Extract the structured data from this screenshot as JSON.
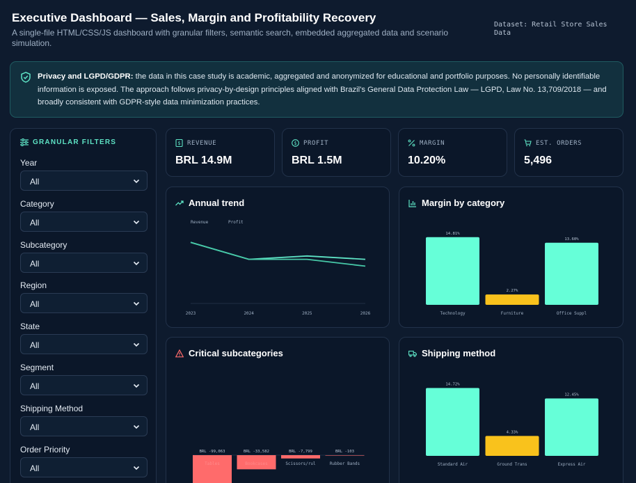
{
  "header": {
    "title": "Executive Dashboard — Sales, Margin and Profitability Recovery",
    "subtitle": "A single-file HTML/CSS/JS dashboard with granular filters, semantic search, embedded aggregated data and scenario simulation.",
    "dataset": "Dataset: Retail Store Sales Data"
  },
  "privacy": {
    "bold": "Privacy and LGPD/GDPR:",
    "text": " the data in this case study is academic, aggregated and anonymized for educational and portfolio purposes. No personally identifiable information is exposed. The approach follows privacy-by-design principles aligned with Brazil's General Data Protection Law — LGPD, Law No. 13,709/2018 — and broadly consistent with GDPR-style data minimization practices."
  },
  "filters": {
    "heading": "GRANULAR FILTERS",
    "items": [
      {
        "label": "Year",
        "value": "All"
      },
      {
        "label": "Category",
        "value": "All"
      },
      {
        "label": "Subcategory",
        "value": "All"
      },
      {
        "label": "Region",
        "value": "All"
      },
      {
        "label": "State",
        "value": "All"
      },
      {
        "label": "Segment",
        "value": "All"
      },
      {
        "label": "Shipping Method",
        "value": "All"
      },
      {
        "label": "Order Priority",
        "value": "All"
      }
    ]
  },
  "kpis": [
    {
      "label": "REVENUE",
      "value": "BRL 14.9M",
      "icon": "revenue-icon"
    },
    {
      "label": "PROFIT",
      "value": "BRL 1.5M",
      "icon": "dollar-circle-icon"
    },
    {
      "label": "MARGIN",
      "value": "10.20%",
      "icon": "percent-icon"
    },
    {
      "label": "EST. ORDERS",
      "value": "5,496",
      "icon": "cart-icon"
    }
  ],
  "panels": {
    "annual_trend": "Annual trend",
    "margin_by_category": "Margin by category",
    "critical_subcategories": "Critical subcategories",
    "shipping_method": "Shipping method"
  },
  "colors": {
    "accent": "#5ee3c5",
    "bar": "#66ffd8",
    "warn": "#f9c21c",
    "danger": "#ff6b6b"
  },
  "chart_data": [
    {
      "type": "line",
      "title": "Annual trend",
      "x": [
        "2023",
        "2024",
        "2025",
        "2026"
      ],
      "series": [
        {
          "name": "Revenue",
          "values": [
            3.9,
            3.65,
            3.7,
            3.65
          ]
        },
        {
          "name": "Profit",
          "values": [
            3.9,
            3.65,
            3.65,
            3.55
          ]
        }
      ],
      "ylim": [
        3.0,
        4.2
      ],
      "grid": false,
      "legend": "top-left"
    },
    {
      "type": "bar",
      "title": "Margin by category",
      "categories": [
        "Technology",
        "Furniture",
        "Office Suppl"
      ],
      "values": [
        14.81,
        2.27,
        13.6
      ],
      "labels": [
        "14.81%",
        "2.27%",
        "13.60%"
      ],
      "colors": [
        "#66ffd8",
        "#f9c21c",
        "#66ffd8"
      ],
      "ylim": [
        0,
        16
      ]
    },
    {
      "type": "bar",
      "title": "Critical subcategories",
      "categories": [
        "Tables",
        "Bookcases",
        "Scissors/rul",
        "Rubber Bands"
      ],
      "values": [
        -99063,
        -33582,
        -7799,
        -103
      ],
      "labels": [
        "BRL -99,063",
        "BRL -33,582",
        "BRL -7,799",
        "BRL -103"
      ],
      "colors": [
        "#ff6b6b",
        "#ff6b6b",
        "#ff6b6b",
        "#ff6b6b"
      ]
    },
    {
      "type": "bar",
      "title": "Shipping method",
      "categories": [
        "Standard Air",
        "Ground Trans",
        "Express Air"
      ],
      "values": [
        14.72,
        4.33,
        12.45
      ],
      "labels": [
        "14.72%",
        "4.33%",
        "12.45%"
      ],
      "colors": [
        "#66ffd8",
        "#f9c21c",
        "#66ffd8"
      ],
      "ylim": [
        0,
        16
      ]
    }
  ]
}
